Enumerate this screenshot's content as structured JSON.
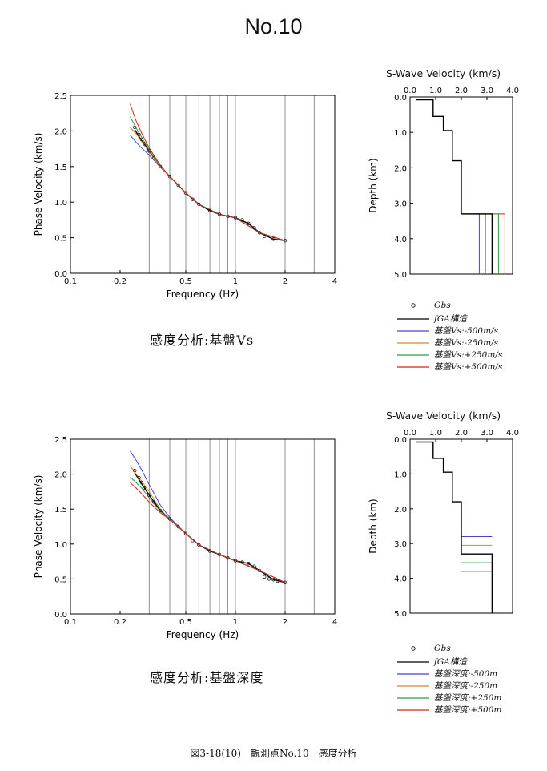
{
  "page": {
    "title": "No.10",
    "figure_caption": "図3-18(10)　観測点No.10　感度分析"
  },
  "colors": {
    "obs": "#222222",
    "fga": "#000000",
    "minus500": "#4444cc",
    "minus250": "#d4882a",
    "plus250": "#2e9a4a",
    "plus500": "#dd2222"
  },
  "sections": [
    {
      "caption": "感度分析:基盤Vs",
      "vel_title": "S-Wave Velocity (km/s)",
      "legend": [
        {
          "label": "Obs",
          "marker": "circle"
        },
        {
          "label": "fGA構造",
          "color_key": "fga"
        },
        {
          "label": "基盤Vs:-500m/s",
          "color_key": "minus500"
        },
        {
          "label": "基盤Vs:-250m/s",
          "color_key": "minus250"
        },
        {
          "label": "基盤Vs:+250m/s",
          "color_key": "plus250"
        },
        {
          "label": "基盤Vs:+500m/s",
          "color_key": "plus500"
        }
      ]
    },
    {
      "caption": "感度分析:基盤深度",
      "vel_title": "S-Wave Velocity (km/s)",
      "legend": [
        {
          "label": "Obs",
          "marker": "circle"
        },
        {
          "label": "fGA構造",
          "color_key": "fga"
        },
        {
          "label": "基盤深度:-500m",
          "color_key": "minus500"
        },
        {
          "label": "基盤深度:-250m",
          "color_key": "minus250"
        },
        {
          "label": "基盤深度:+250m",
          "color_key": "plus250"
        },
        {
          "label": "基盤深度:+500m",
          "color_key": "plus500"
        }
      ]
    }
  ],
  "chart_data": [
    {
      "type": "line",
      "xscale": "log",
      "xlabel": "Frequency (Hz)",
      "ylabel": "Phase Velocity (km/s)",
      "xlim": [
        0.1,
        4
      ],
      "ylim": [
        0,
        2.5
      ],
      "xticks": [
        0.1,
        0.2,
        0.5,
        1,
        2,
        4
      ],
      "xtick_labels": [
        "0.1",
        "0.2",
        "0.5",
        "1",
        "2",
        "4"
      ],
      "yticks": [
        0,
        0.5,
        1,
        1.5,
        2,
        2.5
      ],
      "ytick_labels": [
        "0.0",
        "0.5",
        "1.0",
        "1.5",
        "2.0",
        "2.5"
      ],
      "grid_x": [
        0.3,
        0.4,
        0.5,
        0.6,
        0.7,
        0.8,
        0.9,
        1,
        2,
        3
      ],
      "obs": {
        "x": [
          0.245,
          0.26,
          0.27,
          0.28,
          0.3,
          0.32,
          0.35,
          0.4,
          0.45,
          0.5,
          0.55,
          0.6,
          0.7,
          0.8,
          0.9,
          1.0,
          1.1,
          1.2,
          1.3,
          1.4,
          1.5,
          1.7,
          2.0
        ],
        "y": [
          2.05,
          1.95,
          1.88,
          1.82,
          1.72,
          1.62,
          1.5,
          1.36,
          1.24,
          1.13,
          1.04,
          0.97,
          0.88,
          0.83,
          0.8,
          0.78,
          0.75,
          0.7,
          0.64,
          0.57,
          0.52,
          0.48,
          0.46
        ]
      },
      "series": [
        {
          "name": "fGA構造",
          "color_key": "fga",
          "x": [
            0.245,
            0.27,
            0.3,
            0.35,
            0.4,
            0.5,
            0.6,
            0.7,
            0.8,
            0.9,
            1.0,
            1.2,
            1.4,
            1.7,
            2.0
          ],
          "y": [
            2.02,
            1.86,
            1.72,
            1.5,
            1.36,
            1.13,
            0.97,
            0.88,
            0.83,
            0.8,
            0.78,
            0.7,
            0.57,
            0.48,
            0.46
          ]
        },
        {
          "name": "基盤Vs:-500m/s",
          "color_key": "minus500",
          "x": [
            0.23,
            0.25,
            0.27,
            0.3,
            0.35,
            0.4,
            0.5,
            0.6,
            0.8,
            1.0,
            1.4,
            2.0
          ],
          "y": [
            1.94,
            1.84,
            1.76,
            1.66,
            1.49,
            1.36,
            1.13,
            0.97,
            0.83,
            0.78,
            0.57,
            0.46
          ]
        },
        {
          "name": "基盤Vs:-250m/s",
          "color_key": "minus250",
          "x": [
            0.23,
            0.25,
            0.27,
            0.3,
            0.35,
            0.4,
            0.5,
            0.6,
            0.8,
            1.0,
            1.4,
            2.0
          ],
          "y": [
            2.05,
            1.96,
            1.85,
            1.7,
            1.5,
            1.36,
            1.13,
            0.97,
            0.83,
            0.78,
            0.57,
            0.46
          ]
        },
        {
          "name": "基盤Vs:+250m/s",
          "color_key": "plus250",
          "x": [
            0.23,
            0.25,
            0.27,
            0.3,
            0.35,
            0.4,
            0.5,
            0.6,
            0.8,
            1.0,
            1.4,
            2.0
          ],
          "y": [
            2.2,
            2.04,
            1.91,
            1.73,
            1.51,
            1.36,
            1.13,
            0.97,
            0.83,
            0.78,
            0.57,
            0.46
          ]
        },
        {
          "name": "基盤Vs:+500m/s",
          "color_key": "plus500",
          "x": [
            0.23,
            0.25,
            0.27,
            0.3,
            0.35,
            0.4,
            0.5,
            0.6,
            0.8,
            1.0,
            1.4,
            2.0
          ],
          "y": [
            2.38,
            2.14,
            1.97,
            1.76,
            1.52,
            1.36,
            1.13,
            0.97,
            0.83,
            0.78,
            0.57,
            0.46
          ]
        }
      ]
    },
    {
      "type": "line",
      "title": "S-Wave Velocity (km/s)",
      "ylabel": "Depth (km)",
      "xlim": [
        0,
        4
      ],
      "ylim": [
        5,
        0
      ],
      "xticks": [
        0,
        1,
        2,
        3,
        4
      ],
      "xtick_labels": [
        "0.0",
        "1.0",
        "2.0",
        "3.0",
        "4.0"
      ],
      "yticks": [
        0,
        1,
        2,
        3,
        4,
        5
      ],
      "ytick_labels": [
        "0.0",
        "1.0",
        "2.0",
        "3.0",
        "4.0",
        "5.0"
      ],
      "series": [
        {
          "name": "fGA構造",
          "color_key": "fga",
          "x": [
            0.25,
            0.9,
            0.9,
            1.3,
            1.3,
            1.65,
            1.65,
            2.0,
            2.0,
            3.2,
            3.2
          ],
          "y": [
            0.08,
            0.08,
            0.55,
            0.55,
            0.95,
            0.95,
            1.8,
            1.8,
            3.3,
            3.3,
            5.0
          ]
        },
        {
          "name": "基盤Vs:-500m/s",
          "color_key": "minus500",
          "x": [
            2.0,
            2.7,
            2.7
          ],
          "y": [
            3.3,
            3.3,
            5.0
          ]
        },
        {
          "name": "基盤Vs:-250m/s",
          "color_key": "minus250",
          "x": [
            2.0,
            2.95,
            2.95
          ],
          "y": [
            3.3,
            3.3,
            5.0
          ]
        },
        {
          "name": "基盤Vs:+250m/s",
          "color_key": "plus250",
          "x": [
            2.0,
            3.45,
            3.45
          ],
          "y": [
            3.3,
            3.3,
            5.0
          ]
        },
        {
          "name": "基盤Vs:+500m/s",
          "color_key": "plus500",
          "x": [
            2.0,
            3.7,
            3.7
          ],
          "y": [
            3.3,
            3.3,
            5.0
          ]
        }
      ]
    },
    {
      "type": "line",
      "xscale": "log",
      "xlabel": "Frequency (Hz)",
      "ylabel": "Phase Velocity (km/s)",
      "xlim": [
        0.1,
        4
      ],
      "ylim": [
        0,
        2.5
      ],
      "xticks": [
        0.1,
        0.2,
        0.5,
        1,
        2,
        4
      ],
      "xtick_labels": [
        "0.1",
        "0.2",
        "0.5",
        "1",
        "2",
        "4"
      ],
      "yticks": [
        0,
        0.5,
        1,
        1.5,
        2,
        2.5
      ],
      "ytick_labels": [
        "0.0",
        "0.5",
        "1.0",
        "1.5",
        "2.0",
        "2.5"
      ],
      "grid_x": [
        0.3,
        0.4,
        0.5,
        0.6,
        0.7,
        0.8,
        0.9,
        1,
        2,
        3
      ],
      "obs": {
        "x": [
          0.245,
          0.26,
          0.27,
          0.28,
          0.3,
          0.32,
          0.35,
          0.4,
          0.45,
          0.5,
          0.55,
          0.6,
          0.7,
          0.8,
          0.9,
          1.0,
          1.1,
          1.2,
          1.3,
          1.4,
          1.5,
          1.6,
          1.7,
          1.8,
          2.0
        ],
        "y": [
          2.05,
          1.95,
          1.88,
          1.8,
          1.7,
          1.6,
          1.48,
          1.36,
          1.25,
          1.15,
          1.05,
          0.99,
          0.9,
          0.85,
          0.8,
          0.76,
          0.74,
          0.72,
          0.68,
          0.62,
          0.53,
          0.5,
          0.49,
          0.47,
          0.45
        ]
      },
      "series": [
        {
          "name": "fGA構造",
          "color_key": "fga",
          "x": [
            0.245,
            0.27,
            0.3,
            0.35,
            0.4,
            0.5,
            0.6,
            0.7,
            0.8,
            0.9,
            1.0,
            1.2,
            1.4,
            1.7,
            2.0
          ],
          "y": [
            2.02,
            1.86,
            1.7,
            1.48,
            1.36,
            1.15,
            0.99,
            0.9,
            0.85,
            0.8,
            0.76,
            0.72,
            0.62,
            0.49,
            0.45
          ]
        },
        {
          "name": "基盤深度:-500m",
          "color_key": "minus500",
          "x": [
            0.23,
            0.25,
            0.27,
            0.3,
            0.35,
            0.4,
            0.5,
            0.6,
            0.8,
            1.0,
            1.4,
            2.0
          ],
          "y": [
            2.33,
            2.2,
            2.06,
            1.85,
            1.56,
            1.38,
            1.15,
            0.99,
            0.85,
            0.76,
            0.62,
            0.45
          ]
        },
        {
          "name": "基盤深度:-250m",
          "color_key": "minus250",
          "x": [
            0.23,
            0.25,
            0.27,
            0.3,
            0.35,
            0.4,
            0.5,
            0.6,
            0.8,
            1.0,
            1.4,
            2.0
          ],
          "y": [
            2.12,
            2.0,
            1.9,
            1.75,
            1.5,
            1.36,
            1.15,
            0.99,
            0.85,
            0.76,
            0.62,
            0.45
          ]
        },
        {
          "name": "基盤深度:+250m",
          "color_key": "plus250",
          "x": [
            0.23,
            0.25,
            0.27,
            0.3,
            0.35,
            0.4,
            0.5,
            0.6,
            0.8,
            1.0,
            1.4,
            2.0
          ],
          "y": [
            1.96,
            1.88,
            1.8,
            1.66,
            1.47,
            1.35,
            1.15,
            0.99,
            0.85,
            0.76,
            0.62,
            0.45
          ]
        },
        {
          "name": "基盤深度:+500m",
          "color_key": "plus500",
          "x": [
            0.23,
            0.25,
            0.27,
            0.3,
            0.35,
            0.4,
            0.5,
            0.6,
            0.8,
            1.0,
            1.4,
            2.0
          ],
          "y": [
            1.88,
            1.8,
            1.72,
            1.6,
            1.45,
            1.35,
            1.15,
            0.99,
            0.85,
            0.76,
            0.62,
            0.45
          ]
        }
      ]
    },
    {
      "type": "line",
      "title": "S-Wave Velocity (km/s)",
      "ylabel": "Depth (km)",
      "xlim": [
        0,
        4
      ],
      "ylim": [
        5,
        0
      ],
      "xticks": [
        0,
        1,
        2,
        3,
        4
      ],
      "xtick_labels": [
        "0.0",
        "1.0",
        "2.0",
        "3.0",
        "4.0"
      ],
      "yticks": [
        0,
        1,
        2,
        3,
        4,
        5
      ],
      "ytick_labels": [
        "0.0",
        "1.0",
        "2.0",
        "3.0",
        "4.0",
        "5.0"
      ],
      "series": [
        {
          "name": "fGA構造",
          "color_key": "fga",
          "x": [
            0.25,
            0.9,
            0.9,
            1.3,
            1.3,
            1.65,
            1.65,
            2.0,
            2.0,
            3.2,
            3.2
          ],
          "y": [
            0.08,
            0.08,
            0.55,
            0.55,
            0.95,
            0.95,
            1.8,
            1.8,
            3.3,
            3.3,
            5.0
          ]
        },
        {
          "name": "基盤深度:-500m",
          "color_key": "minus500",
          "x": [
            2.0,
            3.2
          ],
          "y": [
            2.8,
            2.8
          ]
        },
        {
          "name": "基盤深度:-250m",
          "color_key": "minus250",
          "x": [
            2.0,
            3.2
          ],
          "y": [
            3.05,
            3.05
          ]
        },
        {
          "name": "基盤深度:+250m",
          "color_key": "plus250",
          "x": [
            2.0,
            3.2
          ],
          "y": [
            3.55,
            3.55
          ]
        },
        {
          "name": "基盤深度:+500m",
          "color_key": "plus500",
          "x": [
            2.0,
            3.2
          ],
          "y": [
            3.8,
            3.8
          ]
        }
      ]
    }
  ]
}
